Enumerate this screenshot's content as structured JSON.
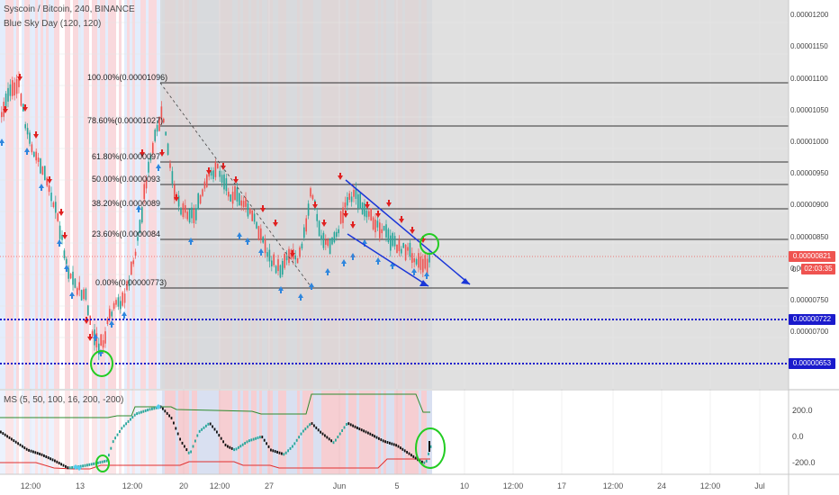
{
  "header": {
    "symbol_title": "Syscoin / Bitcoin, 240, BINANCE",
    "indicator_title": "Blue Sky Day (120, 120)"
  },
  "price_axis": {
    "labels": [
      "0.00001200",
      "0.00001150",
      "0.00001100",
      "0.00001050",
      "0.00001000",
      "0.00000950",
      "0.00000900",
      "0.00000850",
      "0.00000800",
      "0.00000750",
      "0.00000700",
      "0.00000650"
    ],
    "current_price": "0.00000821",
    "countdown": "02:03:35",
    "countdown_prefix": "0.",
    "level_722": "0.00000722",
    "level_653": "0.00000653"
  },
  "fibonacci": [
    {
      "label": "100.00%(0.00001096)"
    },
    {
      "label": "78.60%(0.00001027)"
    },
    {
      "label": "61.80%(0.0000097"
    },
    {
      "label": "50.00%(0.0000093"
    },
    {
      "label": "38.20%(0.0000089"
    },
    {
      "label": "23.60%(0.0000084"
    },
    {
      "label": "0.00%(0.00000773)"
    }
  ],
  "oscillator": {
    "title": "MS (5, 50, 100, 16, 200, -200)",
    "labels": [
      "200.0",
      "0.0",
      "-200.0"
    ]
  },
  "time_axis": {
    "labels": [
      "12:00",
      "13",
      "12:00",
      "20",
      "12:00",
      "27",
      "Jun",
      "5",
      "10",
      "12:00",
      "17",
      "12:00",
      "24",
      "12:00",
      "Jul"
    ]
  },
  "colors": {
    "bull": "#26a69a",
    "bear": "#ef5350",
    "level_line": "#1a1acc",
    "channel": "#1a36d8",
    "circle": "#22cc22",
    "price_tag": "#ef5350",
    "level_tag": "#1a1acc"
  }
}
